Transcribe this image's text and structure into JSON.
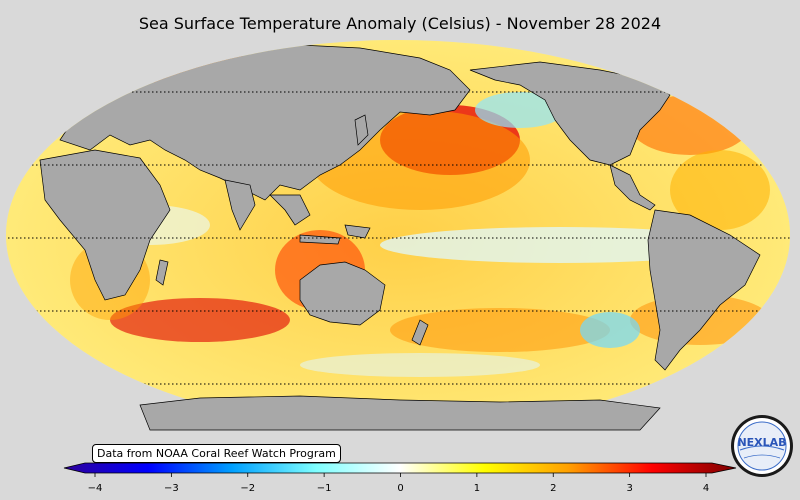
{
  "title": "Sea Surface Temperature Anomaly (Celsius) - November 28 2024",
  "source_note": "Data from NOAA Coral Reef Watch Program",
  "colorbar": {
    "ticks": [
      "−4",
      "−3",
      "−2",
      "−1",
      "0",
      "1",
      "2",
      "3",
      "4"
    ],
    "min": -4,
    "max": 4,
    "colors": [
      "#2e0099",
      "#0000ff",
      "#00a0ff",
      "#7fffff",
      "#ffffff",
      "#ffff00",
      "#ffa000",
      "#ff0000",
      "#7a0000"
    ]
  },
  "logo": {
    "text": "NEXLAB"
  },
  "colors": {
    "background": "#d9d9d9",
    "land": "#a8a8a8",
    "ocean_warm": "#ffd200",
    "ocean_hot": "#e60000",
    "ocean_cool": "#8fe6ff"
  }
}
